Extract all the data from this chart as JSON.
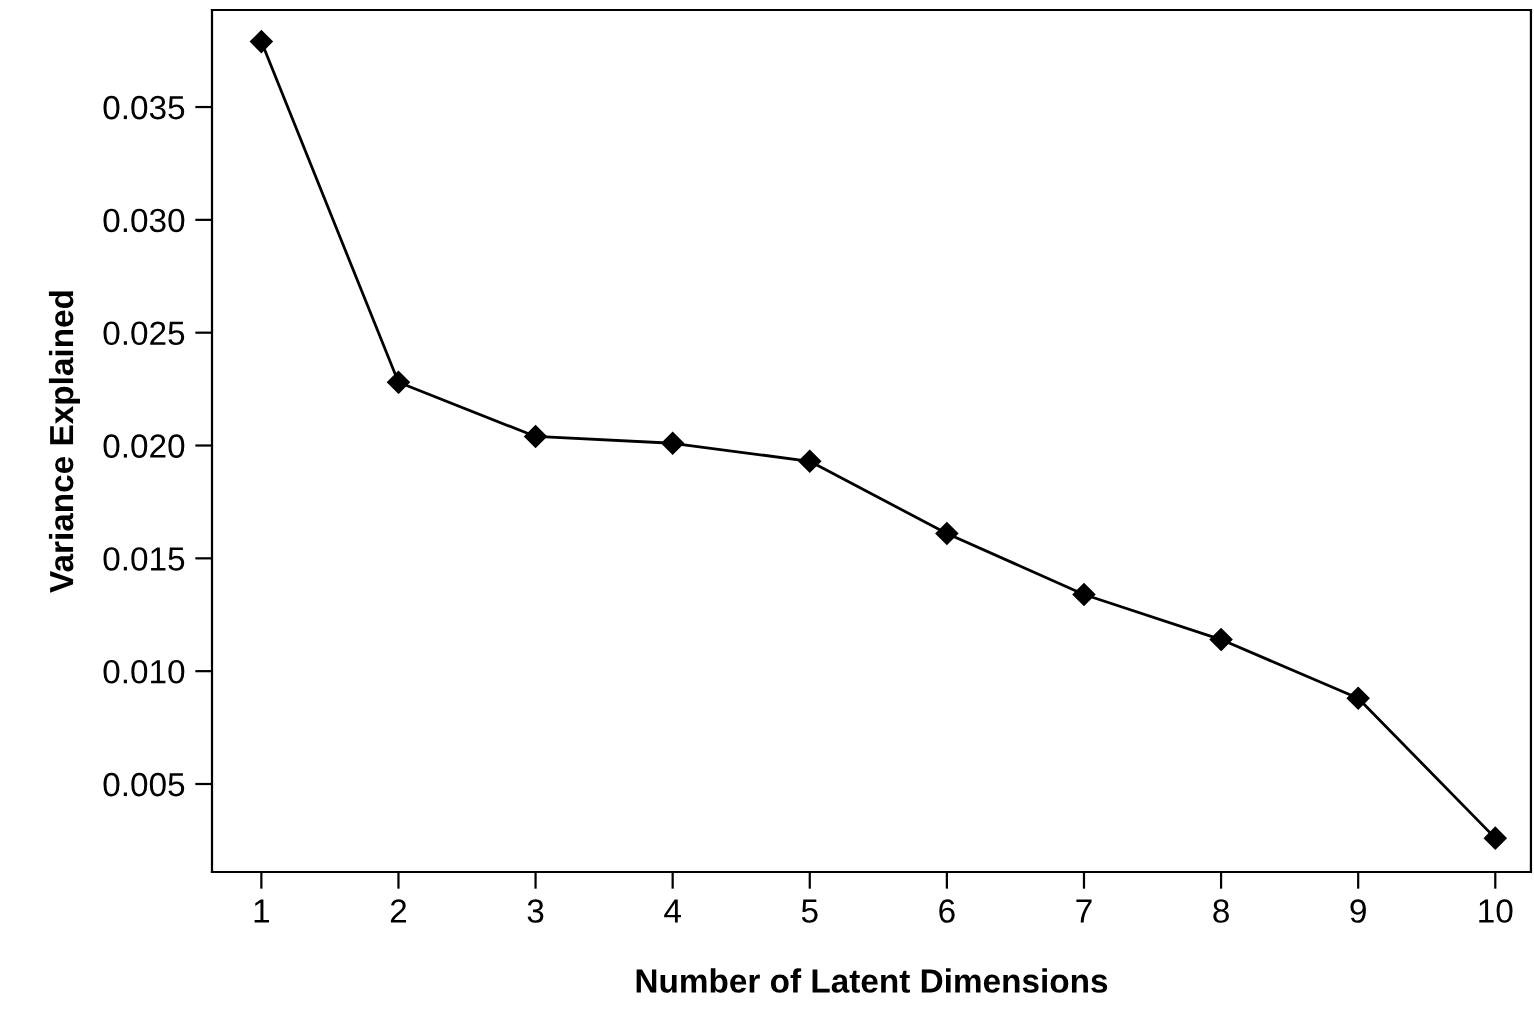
{
  "chart_data": {
    "type": "line",
    "xlabel": "Number of Latent Dimensions",
    "ylabel": "Variance Explained",
    "x": [
      1,
      2,
      3,
      4,
      5,
      6,
      7,
      8,
      9,
      10
    ],
    "series": [
      {
        "color": "#000000",
        "values": [
          0.0379,
          0.0228,
          0.0204,
          0.0201,
          0.0193,
          0.0161,
          0.0134,
          0.0114,
          0.0088,
          0.0026
        ]
      }
    ],
    "xlim": [
      0.64,
      10.26
    ],
    "xticks": [
      1,
      2,
      3,
      4,
      5,
      6,
      7,
      8,
      9,
      10
    ],
    "ylim": [
      0.0011,
      0.0393
    ],
    "yticks": [
      {
        "value": 0.005,
        "label": "0.005"
      },
      {
        "value": 0.01,
        "label": "0.010"
      },
      {
        "value": 0.015,
        "label": "0.015"
      },
      {
        "value": 0.02,
        "label": "0.020"
      },
      {
        "value": 0.025,
        "label": "0.025"
      },
      {
        "value": 0.03,
        "label": "0.030"
      },
      {
        "value": 0.035,
        "label": "0.035"
      }
    ],
    "marker": "diamond",
    "line_style": "solid",
    "grid": false,
    "legend": false
  }
}
